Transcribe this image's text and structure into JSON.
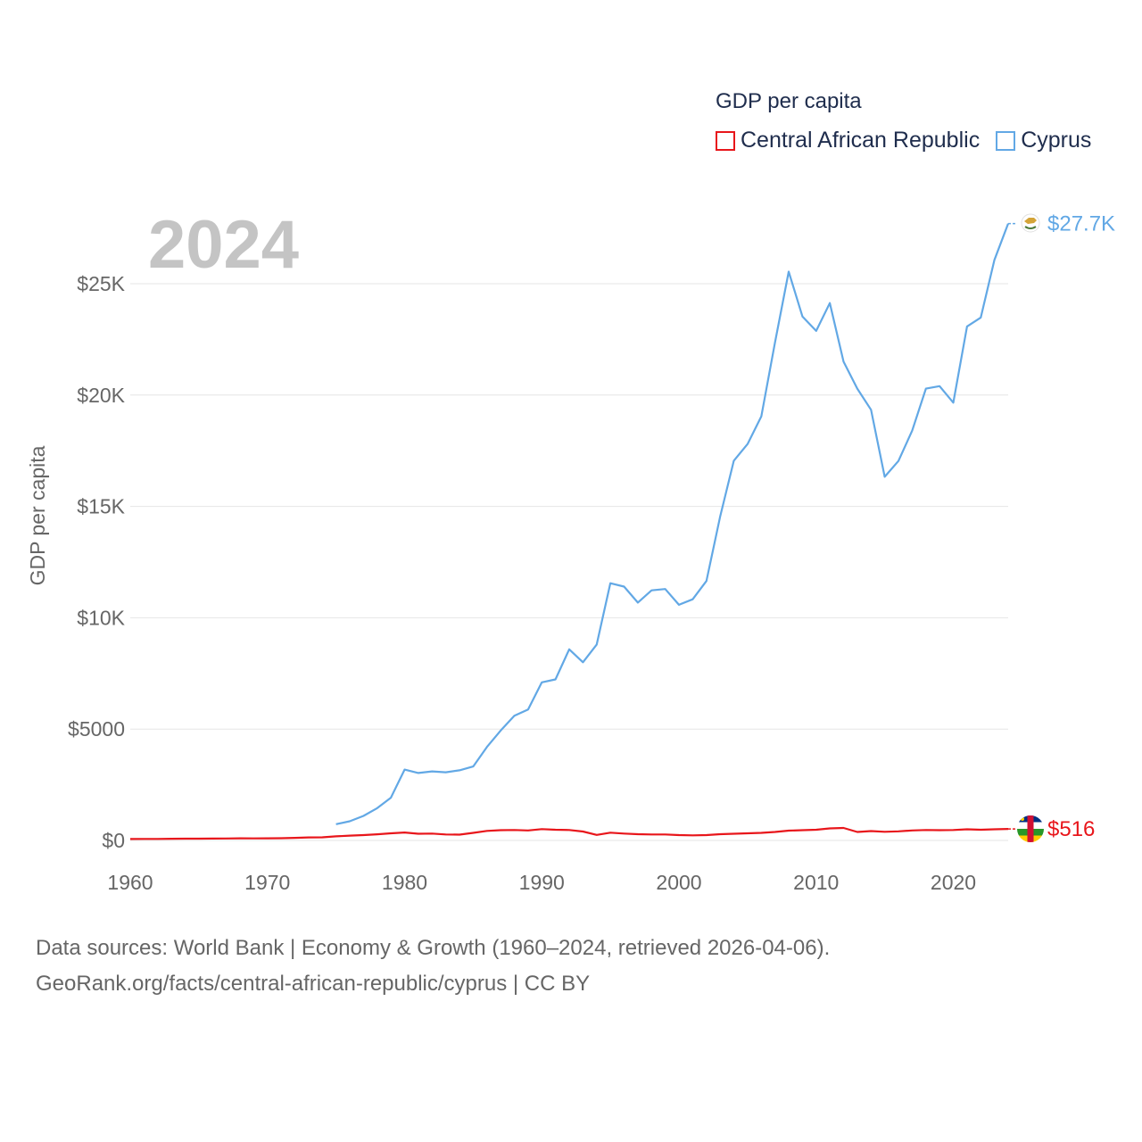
{
  "legend": {
    "title": "GDP per capita",
    "items": [
      {
        "label": "Central African Republic",
        "color": "#e8161b"
      },
      {
        "label": "Cyprus",
        "color": "#62a8e5"
      }
    ]
  },
  "year_label": "2024",
  "source": {
    "line1": "Data sources: World Bank | Economy & Growth (1960–2024, retrieved 2026-04-06).",
    "line2": "GeoRank.org/facts/central-african-republic/cyprus | CC BY"
  },
  "chart_data": {
    "type": "line",
    "title": "GDP per capita",
    "xlabel": "",
    "ylabel": "GDP per capita",
    "xlim": [
      1960,
      2024
    ],
    "ylim": [
      0,
      28000
    ],
    "x_ticks": [
      1960,
      1970,
      1980,
      1990,
      2000,
      2010,
      2020
    ],
    "y_ticks": [
      {
        "value": 0,
        "label": "$0"
      },
      {
        "value": 5000,
        "label": "$5000"
      },
      {
        "value": 10000,
        "label": "$10K"
      },
      {
        "value": 15000,
        "label": "$15K"
      },
      {
        "value": 20000,
        "label": "$20K"
      },
      {
        "value": 25000,
        "label": "$25K"
      }
    ],
    "grid": true,
    "series": [
      {
        "name": "Central African Republic",
        "color": "#e8161b",
        "end_label": "$516",
        "x": [
          1960,
          1961,
          1962,
          1963,
          1964,
          1965,
          1966,
          1967,
          1968,
          1969,
          1970,
          1971,
          1972,
          1973,
          1974,
          1975,
          1976,
          1977,
          1978,
          1979,
          1980,
          1981,
          1982,
          1983,
          1984,
          1985,
          1986,
          1987,
          1988,
          1989,
          1990,
          1991,
          1992,
          1993,
          1994,
          1995,
          1996,
          1997,
          1998,
          1999,
          2000,
          2001,
          2002,
          2003,
          2004,
          2005,
          2006,
          2007,
          2008,
          2009,
          2010,
          2011,
          2012,
          2013,
          2014,
          2015,
          2016,
          2017,
          2018,
          2019,
          2020,
          2021,
          2022,
          2023,
          2024
        ],
        "values": [
          65,
          68,
          70,
          75,
          80,
          82,
          85,
          90,
          95,
          92,
          95,
          100,
          115,
          135,
          140,
          185,
          215,
          240,
          275,
          320,
          355,
          300,
          310,
          270,
          260,
          340,
          430,
          460,
          470,
          450,
          510,
          480,
          470,
          400,
          250,
          350,
          310,
          280,
          270,
          270,
          240,
          230,
          240,
          280,
          300,
          320,
          340,
          380,
          440,
          460,
          480,
          540,
          560,
          380,
          420,
          390,
          410,
          450,
          470,
          460,
          470,
          500,
          480,
          500,
          516
        ]
      },
      {
        "name": "Cyprus",
        "color": "#62a8e5",
        "end_label": "$27.7K",
        "x": [
          1975,
          1976,
          1977,
          1978,
          1979,
          1980,
          1981,
          1982,
          1983,
          1984,
          1985,
          1986,
          1987,
          1988,
          1989,
          1990,
          1991,
          1992,
          1993,
          1994,
          1995,
          1996,
          1997,
          1998,
          1999,
          2000,
          2001,
          2002,
          2003,
          2004,
          2005,
          2006,
          2007,
          2008,
          2009,
          2010,
          2011,
          2012,
          2013,
          2014,
          2015,
          2016,
          2017,
          2018,
          2019,
          2020,
          2021,
          2022,
          2023,
          2024
        ],
        "values": [
          730,
          860,
          1100,
          1450,
          1920,
          3180,
          3030,
          3100,
          3060,
          3150,
          3320,
          4200,
          4930,
          5600,
          5880,
          7100,
          7230,
          8580,
          8000,
          8800,
          11550,
          11400,
          10680,
          11230,
          11290,
          10580,
          10830,
          11650,
          14530,
          17050,
          17800,
          19040,
          22350,
          25540,
          23530,
          22880,
          24130,
          21500,
          20290,
          19340,
          16330,
          17040,
          18400,
          20290,
          20400,
          19660,
          23080,
          23480,
          26070,
          27700
        ]
      }
    ]
  }
}
